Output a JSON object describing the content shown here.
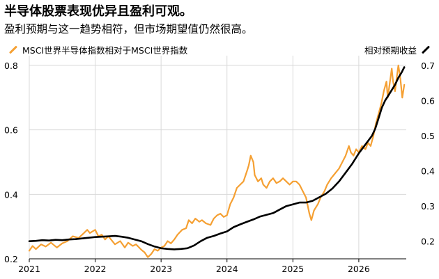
{
  "title": "半导体股票表现优异且盈利可观。",
  "subtitle": "盈利预期与这一趋势相符，但市场期望值仍然很高。",
  "chart_data": {
    "type": "line",
    "title": "半导体股票表现优异且盈利可观。",
    "subtitle": "盈利预期与这一趋势相符，但市场期望值仍然很高。",
    "grid": true,
    "legend_position": "top",
    "x": {
      "type": "year",
      "tick_labels": [
        "2021",
        "2022",
        "2023",
        "2024",
        "2025",
        "2026"
      ],
      "range": [
        2021.0,
        2026.72
      ]
    },
    "y_left": {
      "range": [
        0.2,
        0.8
      ],
      "ticks": [
        0.2,
        0.4,
        0.6,
        0.8
      ],
      "tick_labels": [
        "0.2",
        "0.4",
        "0.6",
        "0.8"
      ]
    },
    "y_right": {
      "range": [
        0.15,
        0.7
      ],
      "ticks": [
        0.2,
        0.3,
        0.4,
        0.5,
        0.6,
        0.7
      ],
      "tick_labels": [
        "0.2",
        "0.3",
        "0.4",
        "0.5",
        "0.6",
        "0.7"
      ]
    },
    "series": [
      {
        "name": "MSCI世界半导体指数相对于MSCI世界指数",
        "axis": "left",
        "color": "#f5a033",
        "points": [
          [
            2021.0,
            0.225
          ],
          [
            2021.05,
            0.24
          ],
          [
            2021.1,
            0.23
          ],
          [
            2021.18,
            0.245
          ],
          [
            2021.25,
            0.238
          ],
          [
            2021.33,
            0.25
          ],
          [
            2021.42,
            0.235
          ],
          [
            2021.5,
            0.248
          ],
          [
            2021.58,
            0.255
          ],
          [
            2021.66,
            0.27
          ],
          [
            2021.75,
            0.265
          ],
          [
            2021.83,
            0.28
          ],
          [
            2021.88,
            0.29
          ],
          [
            2021.92,
            0.28
          ],
          [
            2021.96,
            0.285
          ],
          [
            2022.0,
            0.29
          ],
          [
            2022.05,
            0.27
          ],
          [
            2022.1,
            0.275
          ],
          [
            2022.15,
            0.26
          ],
          [
            2022.2,
            0.27
          ],
          [
            2022.3,
            0.245
          ],
          [
            2022.38,
            0.255
          ],
          [
            2022.45,
            0.235
          ],
          [
            2022.5,
            0.25
          ],
          [
            2022.57,
            0.24
          ],
          [
            2022.62,
            0.245
          ],
          [
            2022.7,
            0.228
          ],
          [
            2022.75,
            0.22
          ],
          [
            2022.8,
            0.205
          ],
          [
            2022.85,
            0.215
          ],
          [
            2022.9,
            0.23
          ],
          [
            2022.95,
            0.225
          ],
          [
            2023.0,
            0.235
          ],
          [
            2023.05,
            0.24
          ],
          [
            2023.1,
            0.255
          ],
          [
            2023.15,
            0.248
          ],
          [
            2023.2,
            0.26
          ],
          [
            2023.25,
            0.275
          ],
          [
            2023.32,
            0.29
          ],
          [
            2023.38,
            0.295
          ],
          [
            2023.42,
            0.32
          ],
          [
            2023.47,
            0.31
          ],
          [
            2023.52,
            0.325
          ],
          [
            2023.58,
            0.315
          ],
          [
            2023.62,
            0.32
          ],
          [
            2023.68,
            0.31
          ],
          [
            2023.75,
            0.305
          ],
          [
            2023.8,
            0.325
          ],
          [
            2023.85,
            0.335
          ],
          [
            2023.9,
            0.34
          ],
          [
            2023.95,
            0.33
          ],
          [
            2024.0,
            0.335
          ],
          [
            2024.05,
            0.37
          ],
          [
            2024.1,
            0.39
          ],
          [
            2024.15,
            0.42
          ],
          [
            2024.2,
            0.43
          ],
          [
            2024.25,
            0.44
          ],
          [
            2024.3,
            0.47
          ],
          [
            2024.33,
            0.49
          ],
          [
            2024.36,
            0.52
          ],
          [
            2024.4,
            0.5
          ],
          [
            2024.42,
            0.46
          ],
          [
            2024.47,
            0.44
          ],
          [
            2024.52,
            0.45
          ],
          [
            2024.55,
            0.43
          ],
          [
            2024.6,
            0.42
          ],
          [
            2024.65,
            0.44
          ],
          [
            2024.7,
            0.45
          ],
          [
            2024.75,
            0.435
          ],
          [
            2024.8,
            0.44
          ],
          [
            2024.85,
            0.45
          ],
          [
            2024.9,
            0.44
          ],
          [
            2024.95,
            0.43
          ],
          [
            2025.0,
            0.44
          ],
          [
            2025.05,
            0.44
          ],
          [
            2025.1,
            0.43
          ],
          [
            2025.15,
            0.41
          ],
          [
            2025.2,
            0.39
          ],
          [
            2025.25,
            0.34
          ],
          [
            2025.28,
            0.32
          ],
          [
            2025.32,
            0.35
          ],
          [
            2025.38,
            0.37
          ],
          [
            2025.42,
            0.39
          ],
          [
            2025.48,
            0.41
          ],
          [
            2025.52,
            0.43
          ],
          [
            2025.58,
            0.45
          ],
          [
            2025.62,
            0.46
          ],
          [
            2025.66,
            0.47
          ],
          [
            2025.7,
            0.48
          ],
          [
            2025.75,
            0.5
          ],
          [
            2025.8,
            0.52
          ],
          [
            2025.85,
            0.55
          ],
          [
            2025.88,
            0.53
          ],
          [
            2025.92,
            0.52
          ],
          [
            2025.96,
            0.54
          ],
          [
            2026.0,
            0.53
          ],
          [
            2026.05,
            0.55
          ],
          [
            2026.1,
            0.54
          ],
          [
            2026.14,
            0.56
          ],
          [
            2026.18,
            0.55
          ],
          [
            2026.22,
            0.58
          ],
          [
            2026.26,
            0.62
          ],
          [
            2026.3,
            0.65
          ],
          [
            2026.34,
            0.68
          ],
          [
            2026.38,
            0.72
          ],
          [
            2026.42,
            0.75
          ],
          [
            2026.44,
            0.7
          ],
          [
            2026.46,
            0.73
          ],
          [
            2026.48,
            0.76
          ],
          [
            2026.5,
            0.79
          ],
          [
            2026.52,
            0.75
          ],
          [
            2026.55,
            0.72
          ],
          [
            2026.58,
            0.77
          ],
          [
            2026.6,
            0.8
          ],
          [
            2026.63,
            0.76
          ],
          [
            2026.66,
            0.7
          ],
          [
            2026.69,
            0.74
          ]
        ]
      },
      {
        "name": "相对预期收益",
        "axis": "right",
        "color": "#000000",
        "points": [
          [
            2021.0,
            0.2
          ],
          [
            2021.1,
            0.201
          ],
          [
            2021.2,
            0.203
          ],
          [
            2021.3,
            0.202
          ],
          [
            2021.4,
            0.204
          ],
          [
            2021.5,
            0.203
          ],
          [
            2021.6,
            0.205
          ],
          [
            2021.7,
            0.206
          ],
          [
            2021.8,
            0.208
          ],
          [
            2021.9,
            0.21
          ],
          [
            2022.0,
            0.212
          ],
          [
            2022.1,
            0.213
          ],
          [
            2022.2,
            0.214
          ],
          [
            2022.3,
            0.215
          ],
          [
            2022.4,
            0.213
          ],
          [
            2022.5,
            0.21
          ],
          [
            2022.6,
            0.205
          ],
          [
            2022.7,
            0.2
          ],
          [
            2022.8,
            0.192
          ],
          [
            2022.9,
            0.185
          ],
          [
            2023.0,
            0.18
          ],
          [
            2023.1,
            0.178
          ],
          [
            2023.2,
            0.177
          ],
          [
            2023.3,
            0.178
          ],
          [
            2023.4,
            0.18
          ],
          [
            2023.5,
            0.188
          ],
          [
            2023.6,
            0.2
          ],
          [
            2023.7,
            0.21
          ],
          [
            2023.8,
            0.215
          ],
          [
            2023.9,
            0.222
          ],
          [
            2024.0,
            0.228
          ],
          [
            2024.1,
            0.24
          ],
          [
            2024.2,
            0.248
          ],
          [
            2024.3,
            0.255
          ],
          [
            2024.4,
            0.262
          ],
          [
            2024.5,
            0.27
          ],
          [
            2024.6,
            0.275
          ],
          [
            2024.7,
            0.28
          ],
          [
            2024.8,
            0.29
          ],
          [
            2024.9,
            0.3
          ],
          [
            2025.0,
            0.305
          ],
          [
            2025.1,
            0.31
          ],
          [
            2025.2,
            0.31
          ],
          [
            2025.3,
            0.315
          ],
          [
            2025.4,
            0.325
          ],
          [
            2025.5,
            0.335
          ],
          [
            2025.6,
            0.35
          ],
          [
            2025.7,
            0.37
          ],
          [
            2025.8,
            0.395
          ],
          [
            2025.9,
            0.42
          ],
          [
            2026.0,
            0.45
          ],
          [
            2026.1,
            0.475
          ],
          [
            2026.2,
            0.5
          ],
          [
            2026.25,
            0.52
          ],
          [
            2026.3,
            0.55
          ],
          [
            2026.35,
            0.58
          ],
          [
            2026.4,
            0.6
          ],
          [
            2026.45,
            0.615
          ],
          [
            2026.5,
            0.63
          ],
          [
            2026.55,
            0.645
          ],
          [
            2026.6,
            0.665
          ],
          [
            2026.65,
            0.68
          ],
          [
            2026.69,
            0.695
          ]
        ]
      }
    ]
  },
  "legend": {
    "left": {
      "label": "MSCI世界半导体指数相对于MSCI世界指数",
      "color": "#f5a033"
    },
    "right": {
      "label": "相对预期收益",
      "color": "#000000"
    }
  }
}
